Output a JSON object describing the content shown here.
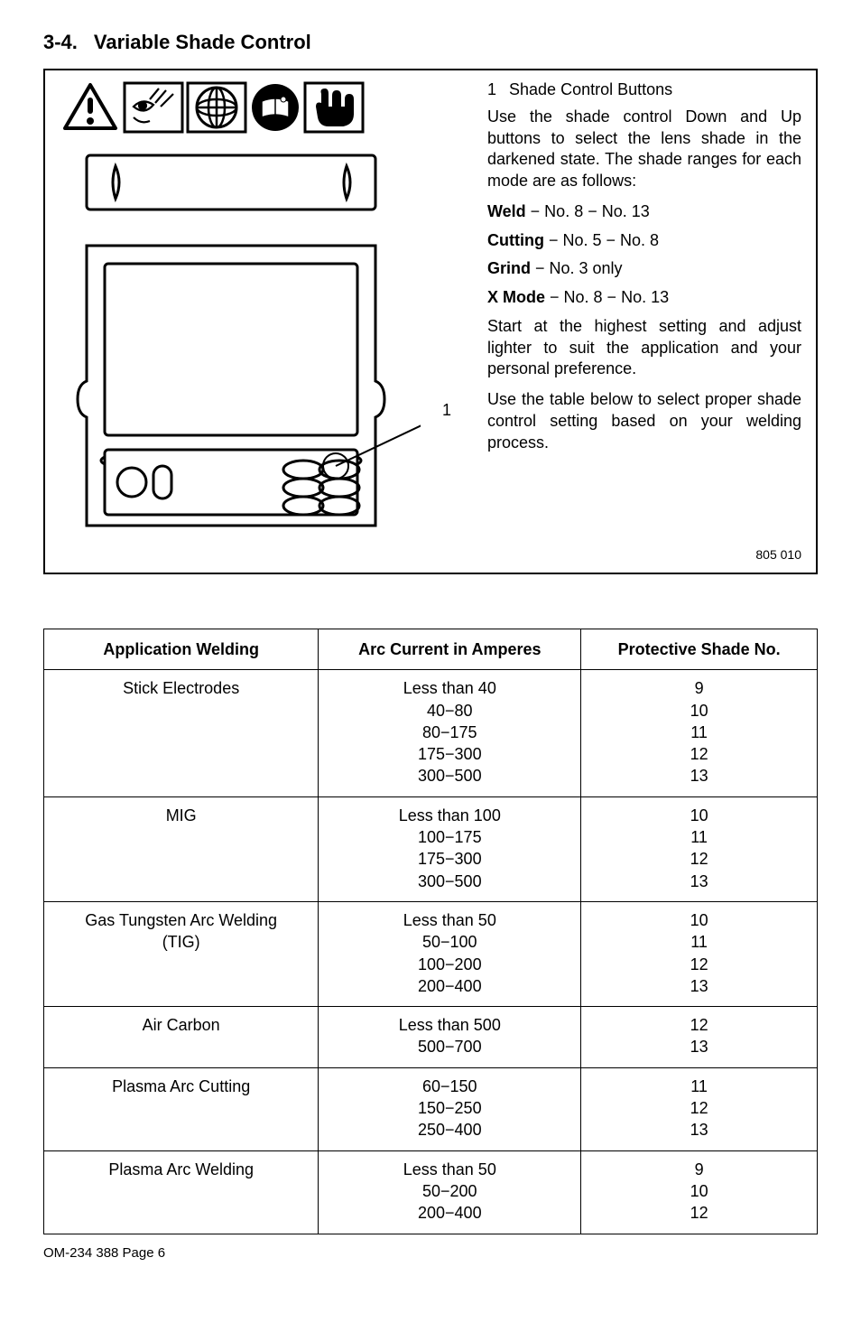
{
  "heading": {
    "number": "3-4.",
    "title": "Variable Shade Control"
  },
  "right": {
    "item1_num": "1",
    "item1_label": "Shade Control Buttons",
    "p1": "Use the shade control Down and Up buttons to select the lens shade in the darkened state. The shade ranges for each mode are as follows:",
    "weld_label": "Weld",
    "weld_val": " − No. 8 − No. 13",
    "cutting_label": "Cutting",
    "cutting_val": " − No. 5 − No. 8",
    "grind_label": "Grind",
    "grind_val": " − No. 3 only",
    "xmode_label": "X Mode",
    "xmode_val": " −  No. 8 − No. 13",
    "p2": "Start at the highest setting and adjust lighter to suit the application and your personal preference.",
    "p3": "Use the table below to select proper shade control setting based on your welding process."
  },
  "diagram": {
    "callout_1": "1",
    "footnum": "805 010"
  },
  "table": {
    "headers": [
      "Application Welding",
      "Arc Current in Amperes",
      "Protective Shade No."
    ],
    "rows": [
      {
        "app": "Stick Electrodes",
        "amps": "Less than 40\n40−80\n80−175\n175−300\n300−500",
        "shade": "9\n10\n11\n12\n13"
      },
      {
        "app": "MIG",
        "amps": "Less than 100\n100−175\n175−300\n300−500",
        "shade": "10\n11\n12\n13"
      },
      {
        "app": "Gas Tungsten Arc Welding\n(TIG)",
        "amps": "Less than 50\n50−100\n100−200\n200−400",
        "shade": "10\n11\n12\n13"
      },
      {
        "app": "Air Carbon",
        "amps": "Less than 500\n500−700",
        "shade": "12\n13"
      },
      {
        "app": "Plasma Arc Cutting",
        "amps": "60−150\n150−250\n250−400",
        "shade": "11\n12\n13"
      },
      {
        "app": "Plasma Arc Welding",
        "amps": "Less than 50\n50−200\n200−400",
        "shade": "9\n10\n12"
      }
    ]
  },
  "footer": "OM-234 388 Page 6"
}
